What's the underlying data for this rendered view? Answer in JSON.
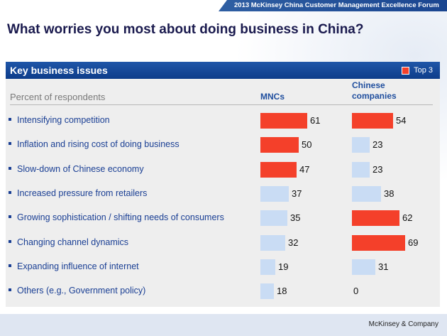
{
  "banner": "2013 McKinsey China Customer Management Excellence Forum",
  "title": "What worries you most about doing business in China?",
  "panel_title": "Key business issues",
  "legend_label": "Top 3",
  "footer": "McKinsey & Company",
  "colors": {
    "top3": "#f4402a",
    "other": "#c9dcf4",
    "header": "#1a4c9c"
  },
  "chart_data": {
    "type": "bar",
    "orientation": "horizontal",
    "row_header": "Percent of respondents",
    "categories": [
      "Intensifying competition",
      "Inflation and rising cost of doing business",
      "Slow-down of Chinese economy",
      "Increased pressure from retailers",
      "Growing sophistication / shifting needs of consumers",
      "Changing channel dynamics",
      "Expanding influence of internet",
      "Others (e.g., Government policy)"
    ],
    "series": [
      {
        "name": "MNCs",
        "values": [
          61,
          50,
          47,
          37,
          35,
          32,
          19,
          18
        ],
        "top3": [
          true,
          true,
          true,
          false,
          false,
          false,
          false,
          false
        ]
      },
      {
        "name": "Chinese companies",
        "values": [
          54,
          23,
          23,
          38,
          62,
          69,
          31,
          0
        ],
        "top3": [
          true,
          false,
          false,
          false,
          true,
          true,
          false,
          false
        ]
      }
    ]
  }
}
